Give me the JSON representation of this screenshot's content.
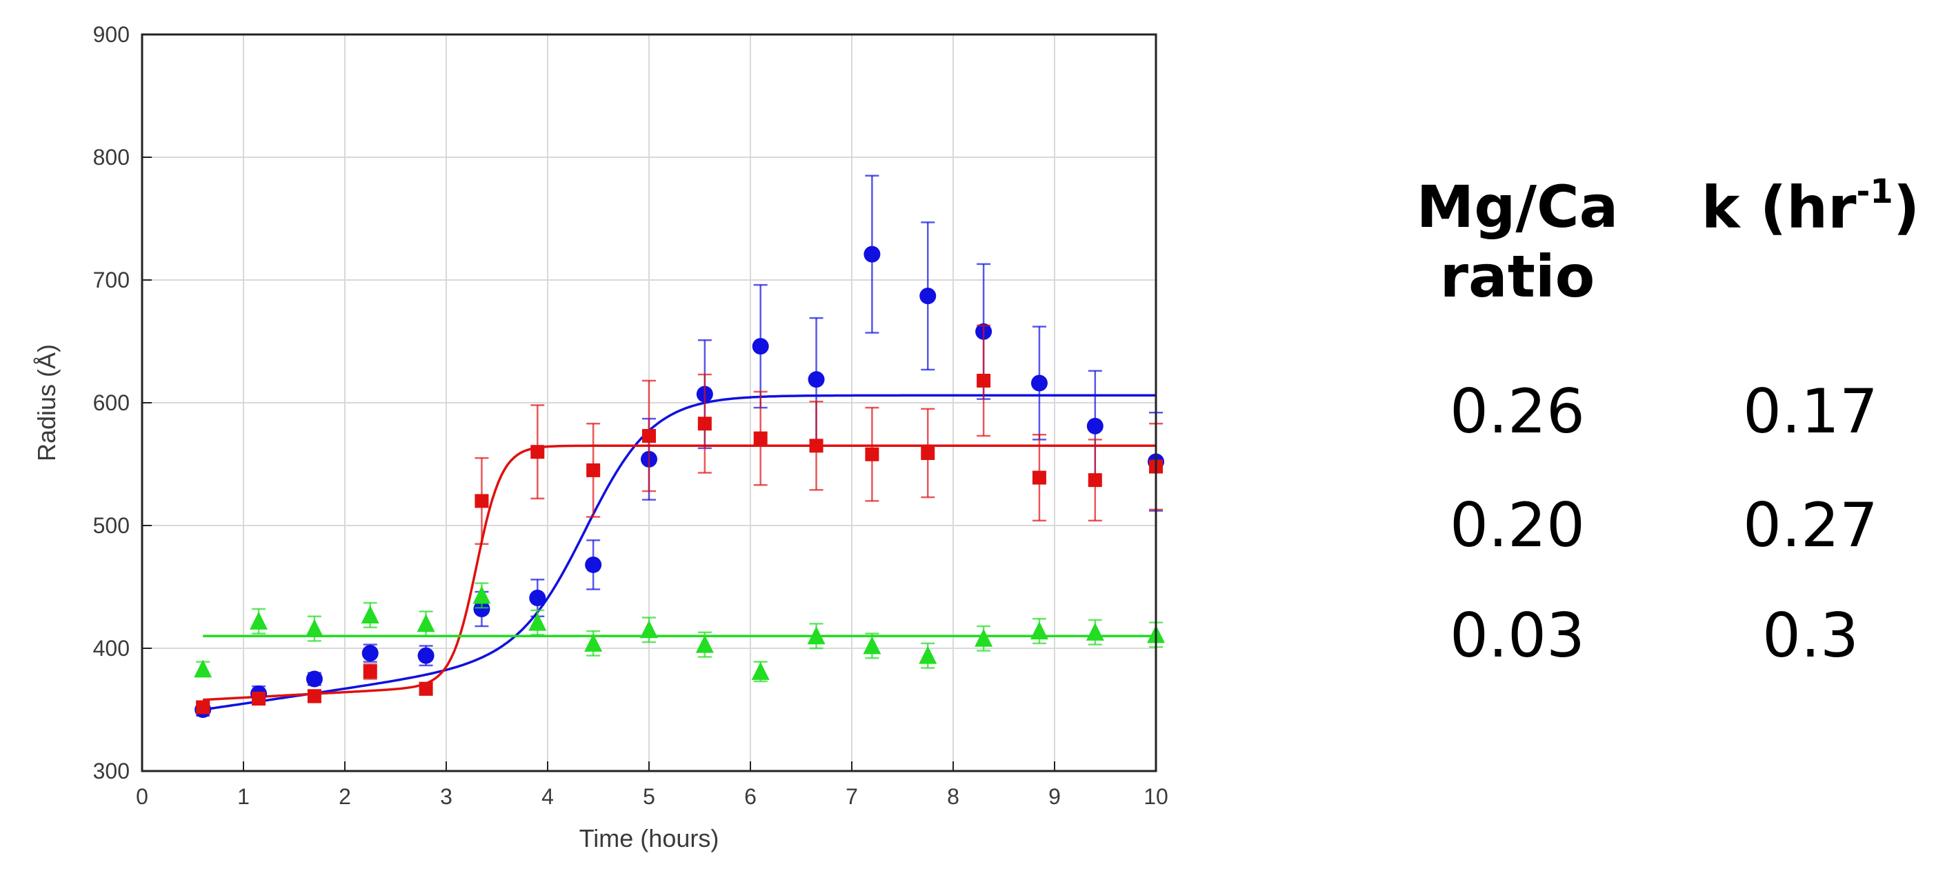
{
  "chart_data": {
    "type": "scatter",
    "title": "",
    "xlabel": "Time (hours)",
    "ylabel": "Radius (Å)",
    "xlim": [
      0,
      10
    ],
    "ylim": [
      300,
      900
    ],
    "x_ticks": [
      "0",
      "1",
      "2",
      "3",
      "4",
      "5",
      "6",
      "7",
      "8",
      "9",
      "10"
    ],
    "y_ticks": [
      "300",
      "400",
      "500",
      "600",
      "700",
      "800",
      "900"
    ],
    "grid": true,
    "series": [
      {
        "name": "Mg/Ca 0.26",
        "color": "#1010e0",
        "marker": "circle",
        "x": [
          0.6,
          1.15,
          1.7,
          2.25,
          2.8,
          3.35,
          3.9,
          4.45,
          5.0,
          5.55,
          6.1,
          6.65,
          7.2,
          7.75,
          8.3,
          8.85,
          9.4,
          10.0
        ],
        "y": [
          350,
          363,
          375,
          396,
          394,
          432,
          441,
          468,
          554,
          607,
          646,
          619,
          721,
          687,
          658,
          616,
          581,
          552
        ],
        "err": [
          5,
          6,
          5,
          7,
          8,
          14,
          15,
          20,
          33,
          44,
          50,
          50,
          64,
          60,
          55,
          46,
          45,
          40
        ],
        "fit": "sigmoid",
        "fit_params": {
          "low_slope_start": 350,
          "low_slope_end": 396,
          "high": 606,
          "midpoint": 4.4,
          "steepness": 3.0
        }
      },
      {
        "name": "Mg/Ca 0.20",
        "color": "#e01010",
        "marker": "square",
        "x": [
          0.6,
          1.15,
          1.7,
          2.25,
          2.8,
          3.35,
          3.9,
          4.45,
          5.0,
          5.55,
          6.1,
          6.65,
          7.2,
          7.75,
          8.3,
          8.85,
          9.4,
          10.0
        ],
        "y": [
          352,
          359,
          361,
          381,
          367,
          520,
          560,
          545,
          573,
          583,
          571,
          565,
          558,
          559,
          618,
          539,
          537,
          548
        ],
        "err": [
          4,
          5,
          5,
          6,
          5,
          35,
          38,
          38,
          45,
          40,
          38,
          36,
          38,
          36,
          45,
          35,
          33,
          35
        ],
        "fit": "sigmoid",
        "fit_params": {
          "low_slope_start": 358,
          "low_slope_end": 370,
          "high": 565,
          "midpoint": 3.3,
          "steepness": 8.0
        }
      },
      {
        "name": "Mg/Ca 0.03",
        "color": "#22dd22",
        "marker": "triangle",
        "x": [
          0.6,
          1.15,
          1.7,
          2.25,
          2.8,
          3.35,
          3.9,
          4.45,
          5.0,
          5.55,
          6.1,
          6.65,
          7.2,
          7.75,
          8.3,
          8.85,
          9.4,
          10.0
        ],
        "y": [
          383,
          422,
          416,
          427,
          420,
          443,
          421,
          404,
          415,
          403,
          381,
          410,
          402,
          394,
          408,
          414,
          413,
          411
        ],
        "err": [
          6,
          10,
          10,
          10,
          10,
          10,
          10,
          10,
          10,
          10,
          8,
          10,
          10,
          10,
          10,
          10,
          10,
          10
        ],
        "fit": "constant",
        "fit_params": {
          "value": 410
        }
      }
    ]
  },
  "table": {
    "header_col1_line1": "Mg/Ca",
    "header_col1_line2": "ratio",
    "header_col2_main": "k (hr",
    "header_col2_sup": "-1",
    "header_col2_close": ")",
    "rows": [
      {
        "ratio": "0.26",
        "k": "0.17"
      },
      {
        "ratio": "0.20",
        "k": "0.27"
      },
      {
        "ratio": "0.03",
        "k": "0.3"
      }
    ]
  }
}
